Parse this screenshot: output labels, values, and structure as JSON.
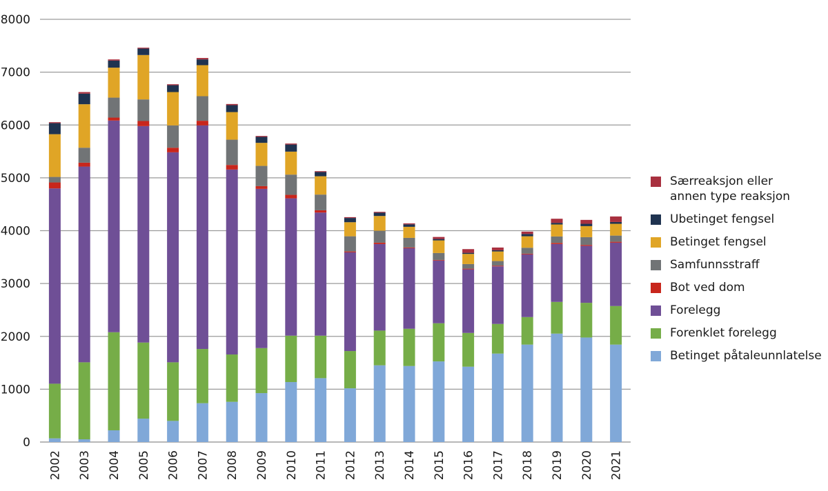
{
  "chart_data": {
    "type": "bar",
    "stacked": true,
    "title": "",
    "xlabel": "",
    "ylabel": "",
    "ylim": [
      0,
      8000
    ],
    "yticks": [
      0,
      1000,
      2000,
      3000,
      4000,
      5000,
      6000,
      7000,
      8000
    ],
    "grid": true,
    "legend_position": "right",
    "categories": [
      "2002",
      "2003",
      "2004",
      "2005",
      "2006",
      "2007",
      "2008",
      "2009",
      "2010",
      "2011",
      "2012",
      "2013",
      "2014",
      "2015",
      "2016",
      "2017",
      "2018",
      "2019",
      "2020",
      "2021"
    ],
    "series": [
      {
        "name": "Betinget påtaleunnlatelse",
        "color": "#80A8D8",
        "values": [
          70,
          52,
          222,
          443,
          400,
          735,
          761,
          926,
          1135,
          1209,
          1017,
          1452,
          1439,
          1526,
          1426,
          1674,
          1844,
          2052,
          1978,
          1844
        ]
      },
      {
        "name": "Forenklet forelegg",
        "color": "#76AD48",
        "values": [
          1034,
          1457,
          1856,
          1440,
          1109,
          1026,
          896,
          852,
          878,
          804,
          705,
          657,
          705,
          722,
          639,
          561,
          521,
          600,
          657,
          730
        ]
      },
      {
        "name": "Forelegg",
        "color": "#6F4F96",
        "values": [
          3696,
          3704,
          4006,
          4096,
          3974,
          4231,
          3500,
          3013,
          2599,
          2330,
          1868,
          1638,
          1524,
          1187,
          1203,
          1090,
          1186,
          1095,
          1077,
          1199
        ]
      },
      {
        "name": "Bot ved dom",
        "color": "#C8261C",
        "values": [
          113,
          74,
          56,
          96,
          87,
          88,
          87,
          52,
          66,
          43,
          17,
          26,
          14,
          11,
          13,
          13,
          13,
          22,
          18,
          17
        ]
      },
      {
        "name": "Samfunnsstraff",
        "color": "#717476",
        "values": [
          104,
          283,
          378,
          409,
          422,
          465,
          478,
          383,
          383,
          297,
          287,
          226,
          182,
          131,
          87,
          87,
          113,
          121,
          147,
          117
        ]
      },
      {
        "name": "Betinget fengsel",
        "color": "#E0A526",
        "values": [
          809,
          823,
          567,
          840,
          631,
          587,
          522,
          436,
          435,
          347,
          266,
          279,
          209,
          239,
          192,
          182,
          217,
          227,
          209,
          223
        ]
      },
      {
        "name": "Ubetinget fengsel",
        "color": "#1F3350",
        "values": [
          209,
          200,
          134,
          122,
          130,
          109,
          131,
          113,
          134,
          80,
          80,
          62,
          47,
          26,
          21,
          22,
          44,
          31,
          44,
          34
        ]
      },
      {
        "name": "Særreaksjon eller\nannen type reaksjon",
        "color": "#A8303F",
        "values": [
          18,
          30,
          22,
          17,
          18,
          27,
          22,
          17,
          19,
          16,
          16,
          16,
          18,
          39,
          70,
          52,
          44,
          78,
          74,
          105
        ]
      }
    ]
  }
}
